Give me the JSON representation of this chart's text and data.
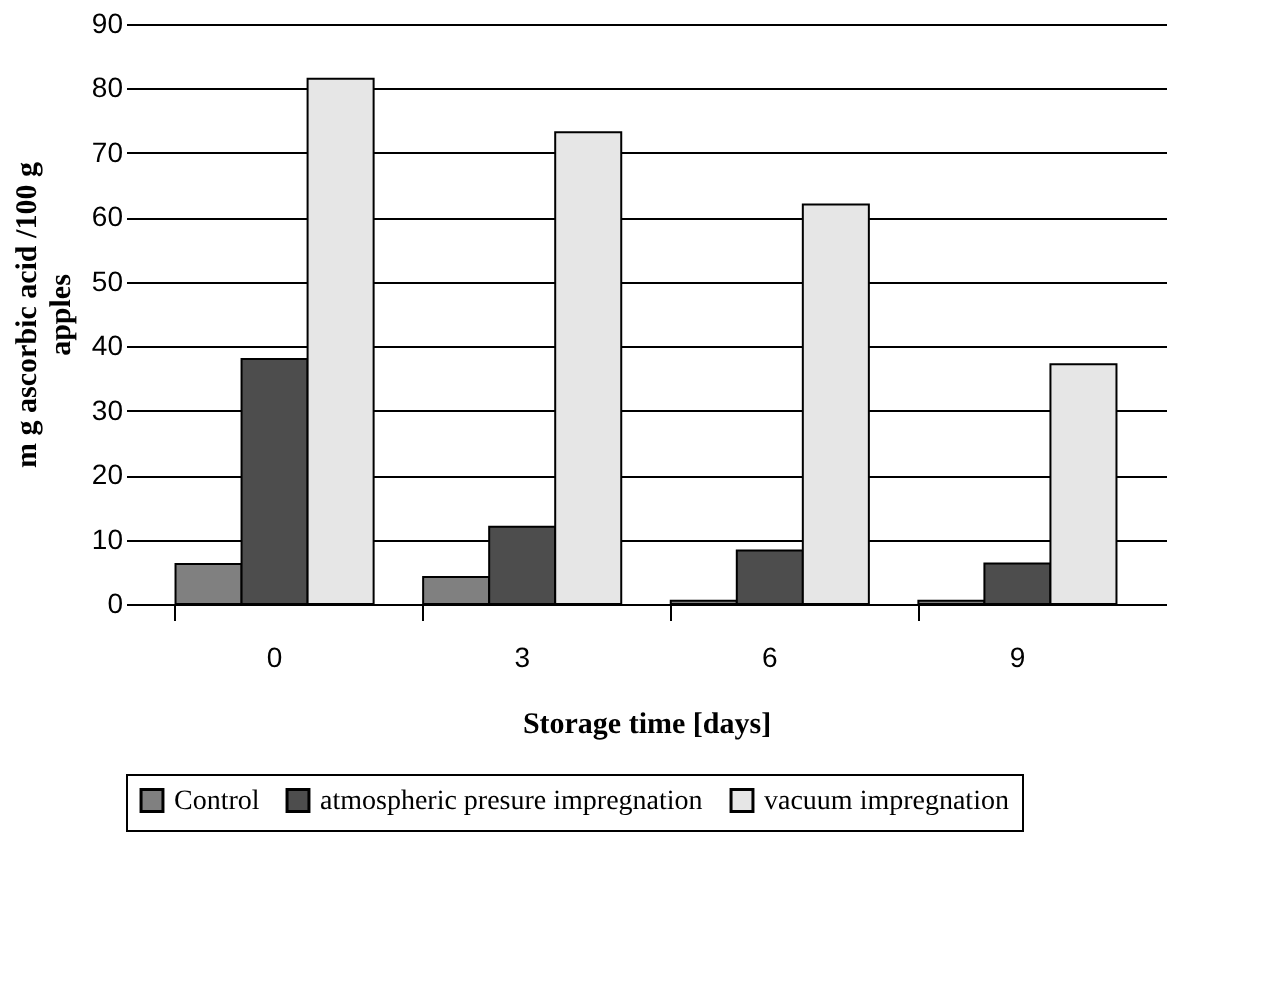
{
  "chart_data": {
    "type": "bar",
    "xlabel": "Storage time [days]",
    "ylabel": "m g ascorbic acid /100 g apples",
    "categories": [
      "0",
      "3",
      "6",
      "9"
    ],
    "series": [
      {
        "name": "Control",
        "color": "#808080",
        "values": [
          6.2,
          4.2,
          0.5,
          0.5
        ]
      },
      {
        "name": "atmospheric presure impregnation",
        "color": "#4d4d4d",
        "values": [
          38,
          12,
          8.3,
          6.3
        ]
      },
      {
        "name": "vacuum impregnation",
        "color": "#e6e6e6",
        "values": [
          81.5,
          73.2,
          62,
          37.2
        ]
      }
    ],
    "ylim": [
      0,
      90
    ],
    "yticks": [
      0,
      10,
      20,
      30,
      40,
      50,
      60,
      70,
      80,
      90
    ],
    "grid": "y",
    "legend": "bottom"
  }
}
